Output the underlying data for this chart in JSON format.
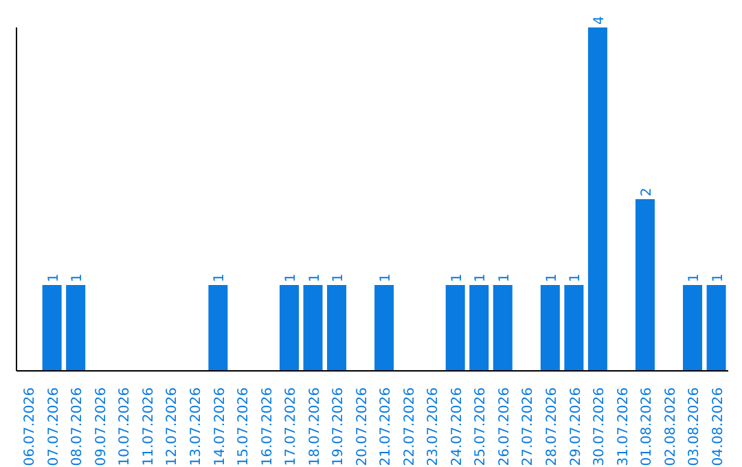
{
  "chart_data": {
    "type": "bar",
    "categories": [
      "06.07.2026",
      "07.07.2026",
      "08.07.2026",
      "09.07.2026",
      "10.07.2026",
      "11.07.2026",
      "12.07.2026",
      "13.07.2026",
      "14.07.2026",
      "15.07.2026",
      "16.07.2026",
      "17.07.2026",
      "18.07.2026",
      "19.07.2026",
      "20.07.2026",
      "21.07.2026",
      "22.07.2026",
      "23.07.2026",
      "24.07.2026",
      "25.07.2026",
      "26.07.2026",
      "27.07.2026",
      "28.07.2026",
      "29.07.2026",
      "30.07.2026",
      "31.07.2026",
      "01.08.2026",
      "02.08.2026",
      "03.08.2026",
      "04.08.2026"
    ],
    "values": [
      0,
      1,
      1,
      0,
      0,
      0,
      0,
      0,
      1,
      0,
      0,
      1,
      1,
      1,
      0,
      1,
      0,
      0,
      1,
      1,
      1,
      0,
      1,
      1,
      4,
      0,
      2,
      0,
      1,
      1
    ],
    "value_labels": [
      null,
      "1",
      "1",
      null,
      null,
      null,
      null,
      null,
      "1",
      null,
      null,
      "1",
      "1",
      "1",
      null,
      "1",
      null,
      null,
      "1",
      "1",
      "1",
      null,
      "1",
      "1",
      "4",
      null,
      "2",
      null,
      "1",
      "1"
    ],
    "color": "#0a7be0",
    "ylim": [
      0,
      4
    ],
    "tick_labels": "x",
    "grid": false,
    "legend": false
  }
}
